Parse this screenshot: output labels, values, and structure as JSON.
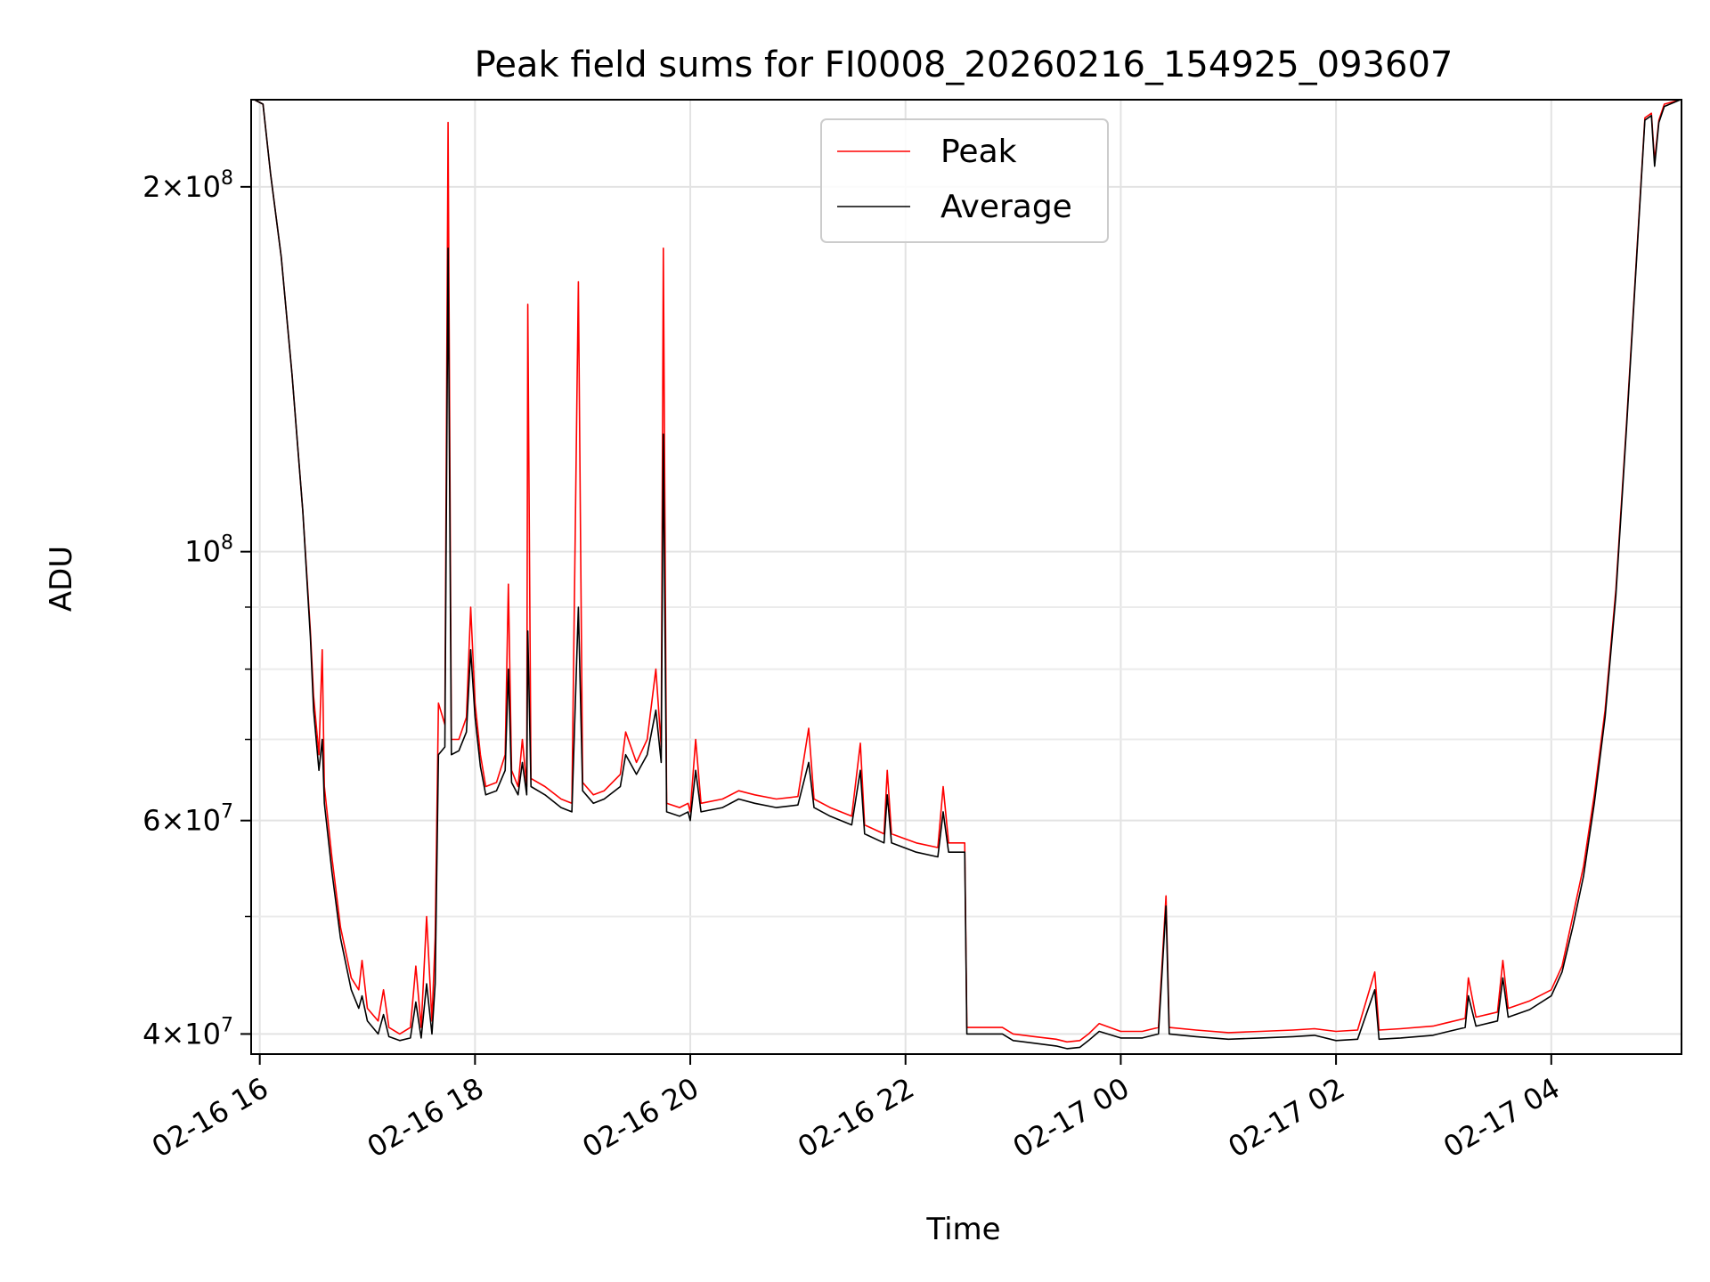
{
  "chart_data": {
    "type": "line",
    "title": "Peak field sums for FI0008_20260216_154925_093607",
    "xlabel": "Time",
    "ylabel": "ADU",
    "yscale": "log",
    "ylim": [
      38500000,
      236000000
    ],
    "xlim_hours": [
      15.92,
      29.21
    ],
    "grid": true,
    "legend_position": "top-center",
    "x_ticks": [
      {
        "label": "02-16 16",
        "hour": 16
      },
      {
        "label": "02-16 18",
        "hour": 18
      },
      {
        "label": "02-16 20",
        "hour": 20
      },
      {
        "label": "02-16 22",
        "hour": 22
      },
      {
        "label": "02-17 00",
        "hour": 24
      },
      {
        "label": "02-17 02",
        "hour": 26
      },
      {
        "label": "02-17 04",
        "hour": 28
      }
    ],
    "y_ticks": [
      {
        "mant": "4",
        "exp": "7",
        "value": 40000000
      },
      {
        "mant": "6",
        "exp": "7",
        "value": 60000000
      },
      {
        "mant": "",
        "exp": "8",
        "value": 100000000
      },
      {
        "mant": "2",
        "exp": "8",
        "value": 200000000
      }
    ],
    "y_minor_ticks": [
      50000000,
      70000000,
      80000000,
      90000000
    ],
    "series": [
      {
        "name": "Peak",
        "color": "#ff0000",
        "points": [
          [
            15.95,
            236000000
          ],
          [
            16.03,
            234000000
          ],
          [
            16.1,
            205000000
          ],
          [
            16.2,
            175000000
          ],
          [
            16.3,
            140000000
          ],
          [
            16.4,
            108000000
          ],
          [
            16.47,
            86000000
          ],
          [
            16.5,
            76000000
          ],
          [
            16.55,
            68000000
          ],
          [
            16.58,
            83000000
          ],
          [
            16.6,
            64000000
          ],
          [
            16.67,
            56000000
          ],
          [
            16.75,
            49000000
          ],
          [
            16.85,
            44500000
          ],
          [
            16.92,
            43500000
          ],
          [
            16.95,
            46000000
          ],
          [
            17.0,
            42000000
          ],
          [
            17.1,
            41000000
          ],
          [
            17.15,
            43500000
          ],
          [
            17.2,
            40500000
          ],
          [
            17.3,
            40000000
          ],
          [
            17.4,
            40500000
          ],
          [
            17.45,
            45500000
          ],
          [
            17.5,
            40500000
          ],
          [
            17.55,
            50000000
          ],
          [
            17.6,
            41000000
          ],
          [
            17.63,
            48000000
          ],
          [
            17.66,
            75000000
          ],
          [
            17.72,
            72000000
          ],
          [
            17.75,
            226000000
          ],
          [
            17.78,
            70000000
          ],
          [
            17.85,
            70000000
          ],
          [
            17.92,
            73000000
          ],
          [
            17.96,
            90000000
          ],
          [
            18.0,
            75000000
          ],
          [
            18.05,
            68000000
          ],
          [
            18.1,
            64000000
          ],
          [
            18.2,
            64500000
          ],
          [
            18.28,
            68000000
          ],
          [
            18.31,
            94000000
          ],
          [
            18.34,
            66000000
          ],
          [
            18.4,
            64000000
          ],
          [
            18.44,
            70000000
          ],
          [
            18.48,
            64000000
          ],
          [
            18.49,
            160000000
          ],
          [
            18.52,
            65000000
          ],
          [
            18.65,
            64000000
          ],
          [
            18.8,
            62500000
          ],
          [
            18.9,
            62000000
          ],
          [
            18.96,
            167000000
          ],
          [
            19.0,
            64500000
          ],
          [
            19.1,
            63000000
          ],
          [
            19.2,
            63500000
          ],
          [
            19.35,
            65500000
          ],
          [
            19.4,
            71000000
          ],
          [
            19.5,
            67000000
          ],
          [
            19.6,
            70000000
          ],
          [
            19.68,
            80000000
          ],
          [
            19.73,
            69000000
          ],
          [
            19.75,
            178000000
          ],
          [
            19.78,
            62000000
          ],
          [
            19.9,
            61500000
          ],
          [
            19.98,
            62000000
          ],
          [
            20.0,
            61000000
          ],
          [
            20.05,
            70000000
          ],
          [
            20.1,
            62000000
          ],
          [
            20.3,
            62500000
          ],
          [
            20.45,
            63500000
          ],
          [
            20.6,
            63000000
          ],
          [
            20.8,
            62500000
          ],
          [
            21.0,
            62800000
          ],
          [
            21.1,
            71500000
          ],
          [
            21.15,
            62500000
          ],
          [
            21.3,
            61500000
          ],
          [
            21.5,
            60500000
          ],
          [
            21.58,
            69500000
          ],
          [
            21.62,
            59500000
          ],
          [
            21.8,
            58500000
          ],
          [
            21.83,
            66000000
          ],
          [
            21.87,
            58500000
          ],
          [
            22.1,
            57500000
          ],
          [
            22.3,
            57000000
          ],
          [
            22.35,
            64000000
          ],
          [
            22.4,
            57500000
          ],
          [
            22.55,
            57500000
          ],
          [
            22.57,
            40500000
          ],
          [
            22.7,
            40500000
          ],
          [
            22.9,
            40500000
          ],
          [
            23.0,
            40000000
          ],
          [
            23.2,
            39800000
          ],
          [
            23.4,
            39600000
          ],
          [
            23.5,
            39400000
          ],
          [
            23.62,
            39500000
          ],
          [
            23.7,
            40000000
          ],
          [
            23.8,
            40800000
          ],
          [
            24.0,
            40200000
          ],
          [
            24.2,
            40200000
          ],
          [
            24.35,
            40500000
          ],
          [
            24.42,
            52000000
          ],
          [
            24.45,
            40500000
          ],
          [
            24.7,
            40300000
          ],
          [
            25.0,
            40100000
          ],
          [
            25.3,
            40200000
          ],
          [
            25.6,
            40300000
          ],
          [
            25.8,
            40400000
          ],
          [
            26.0,
            40200000
          ],
          [
            26.2,
            40300000
          ],
          [
            26.36,
            45000000
          ],
          [
            26.4,
            40300000
          ],
          [
            26.6,
            40400000
          ],
          [
            26.9,
            40600000
          ],
          [
            27.0,
            40800000
          ],
          [
            27.2,
            41200000
          ],
          [
            27.23,
            44500000
          ],
          [
            27.3,
            41300000
          ],
          [
            27.5,
            41700000
          ],
          [
            27.55,
            46000000
          ],
          [
            27.6,
            42000000
          ],
          [
            27.8,
            42600000
          ],
          [
            28.0,
            43500000
          ],
          [
            28.1,
            45500000
          ],
          [
            28.2,
            50000000
          ],
          [
            28.3,
            55000000
          ],
          [
            28.4,
            63000000
          ],
          [
            28.5,
            74000000
          ],
          [
            28.6,
            93000000
          ],
          [
            28.7,
            128000000
          ],
          [
            28.8,
            180000000
          ],
          [
            28.87,
            228000000
          ],
          [
            28.93,
            230000000
          ],
          [
            28.96,
            210000000
          ],
          [
            29.0,
            227000000
          ],
          [
            29.05,
            234000000
          ],
          [
            29.2,
            236000000
          ]
        ]
      },
      {
        "name": "Average",
        "color": "#000000",
        "points": [
          [
            15.95,
            236000000
          ],
          [
            16.03,
            234000000
          ],
          [
            16.1,
            205000000
          ],
          [
            16.2,
            175000000
          ],
          [
            16.3,
            140000000
          ],
          [
            16.4,
            108000000
          ],
          [
            16.47,
            85000000
          ],
          [
            16.5,
            74000000
          ],
          [
            16.55,
            66000000
          ],
          [
            16.58,
            70000000
          ],
          [
            16.6,
            62000000
          ],
          [
            16.67,
            54500000
          ],
          [
            16.75,
            48000000
          ],
          [
            16.85,
            43500000
          ],
          [
            16.92,
            42000000
          ],
          [
            16.95,
            43000000
          ],
          [
            17.0,
            41000000
          ],
          [
            17.1,
            40000000
          ],
          [
            17.15,
            41500000
          ],
          [
            17.2,
            39800000
          ],
          [
            17.3,
            39500000
          ],
          [
            17.4,
            39700000
          ],
          [
            17.45,
            42500000
          ],
          [
            17.5,
            39700000
          ],
          [
            17.55,
            44000000
          ],
          [
            17.6,
            40000000
          ],
          [
            17.63,
            44000000
          ],
          [
            17.66,
            68000000
          ],
          [
            17.72,
            69000000
          ],
          [
            17.75,
            178000000
          ],
          [
            17.78,
            68000000
          ],
          [
            17.85,
            68500000
          ],
          [
            17.92,
            71000000
          ],
          [
            17.96,
            83000000
          ],
          [
            18.0,
            73000000
          ],
          [
            18.05,
            66500000
          ],
          [
            18.1,
            63000000
          ],
          [
            18.2,
            63500000
          ],
          [
            18.28,
            66000000
          ],
          [
            18.31,
            80000000
          ],
          [
            18.34,
            64500000
          ],
          [
            18.4,
            63000000
          ],
          [
            18.44,
            67000000
          ],
          [
            18.48,
            63000000
          ],
          [
            18.49,
            86000000
          ],
          [
            18.52,
            64000000
          ],
          [
            18.65,
            63000000
          ],
          [
            18.8,
            61500000
          ],
          [
            18.9,
            61000000
          ],
          [
            18.96,
            90000000
          ],
          [
            19.0,
            63500000
          ],
          [
            19.1,
            62000000
          ],
          [
            19.2,
            62500000
          ],
          [
            19.35,
            64000000
          ],
          [
            19.4,
            68000000
          ],
          [
            19.5,
            65500000
          ],
          [
            19.6,
            68000000
          ],
          [
            19.68,
            74000000
          ],
          [
            19.73,
            67000000
          ],
          [
            19.75,
            125000000
          ],
          [
            19.78,
            61000000
          ],
          [
            19.9,
            60500000
          ],
          [
            19.98,
            61000000
          ],
          [
            20.0,
            60000000
          ],
          [
            20.05,
            66000000
          ],
          [
            20.1,
            61000000
          ],
          [
            20.3,
            61500000
          ],
          [
            20.45,
            62500000
          ],
          [
            20.6,
            62000000
          ],
          [
            20.8,
            61500000
          ],
          [
            21.0,
            61800000
          ],
          [
            21.1,
            67000000
          ],
          [
            21.15,
            61500000
          ],
          [
            21.3,
            60500000
          ],
          [
            21.5,
            59500000
          ],
          [
            21.58,
            66000000
          ],
          [
            21.62,
            58500000
          ],
          [
            21.8,
            57500000
          ],
          [
            21.83,
            63000000
          ],
          [
            21.87,
            57500000
          ],
          [
            22.1,
            56500000
          ],
          [
            22.3,
            56000000
          ],
          [
            22.35,
            61000000
          ],
          [
            22.4,
            56500000
          ],
          [
            22.55,
            56500000
          ],
          [
            22.57,
            40000000
          ],
          [
            22.7,
            40000000
          ],
          [
            22.9,
            40000000
          ],
          [
            23.0,
            39500000
          ],
          [
            23.2,
            39300000
          ],
          [
            23.4,
            39100000
          ],
          [
            23.5,
            38900000
          ],
          [
            23.62,
            39000000
          ],
          [
            23.7,
            39500000
          ],
          [
            23.8,
            40200000
          ],
          [
            24.0,
            39700000
          ],
          [
            24.2,
            39700000
          ],
          [
            24.35,
            40000000
          ],
          [
            24.42,
            51000000
          ],
          [
            24.45,
            40000000
          ],
          [
            24.7,
            39800000
          ],
          [
            25.0,
            39600000
          ],
          [
            25.3,
            39700000
          ],
          [
            25.6,
            39800000
          ],
          [
            25.8,
            39900000
          ],
          [
            26.0,
            39500000
          ],
          [
            26.2,
            39600000
          ],
          [
            26.36,
            43500000
          ],
          [
            26.4,
            39600000
          ],
          [
            26.6,
            39700000
          ],
          [
            26.9,
            39900000
          ],
          [
            27.0,
            40100000
          ],
          [
            27.2,
            40500000
          ],
          [
            27.23,
            43000000
          ],
          [
            27.3,
            40600000
          ],
          [
            27.5,
            41000000
          ],
          [
            27.55,
            44500000
          ],
          [
            27.6,
            41300000
          ],
          [
            27.8,
            41900000
          ],
          [
            28.0,
            43000000
          ],
          [
            28.1,
            45000000
          ],
          [
            28.2,
            49000000
          ],
          [
            28.3,
            54000000
          ],
          [
            28.4,
            62000000
          ],
          [
            28.5,
            73000000
          ],
          [
            28.6,
            92000000
          ],
          [
            28.7,
            127000000
          ],
          [
            28.8,
            179000000
          ],
          [
            28.87,
            227000000
          ],
          [
            28.93,
            229000000
          ],
          [
            28.96,
            208000000
          ],
          [
            29.0,
            226000000
          ],
          [
            29.05,
            233000000
          ],
          [
            29.2,
            236000000
          ]
        ]
      }
    ]
  }
}
